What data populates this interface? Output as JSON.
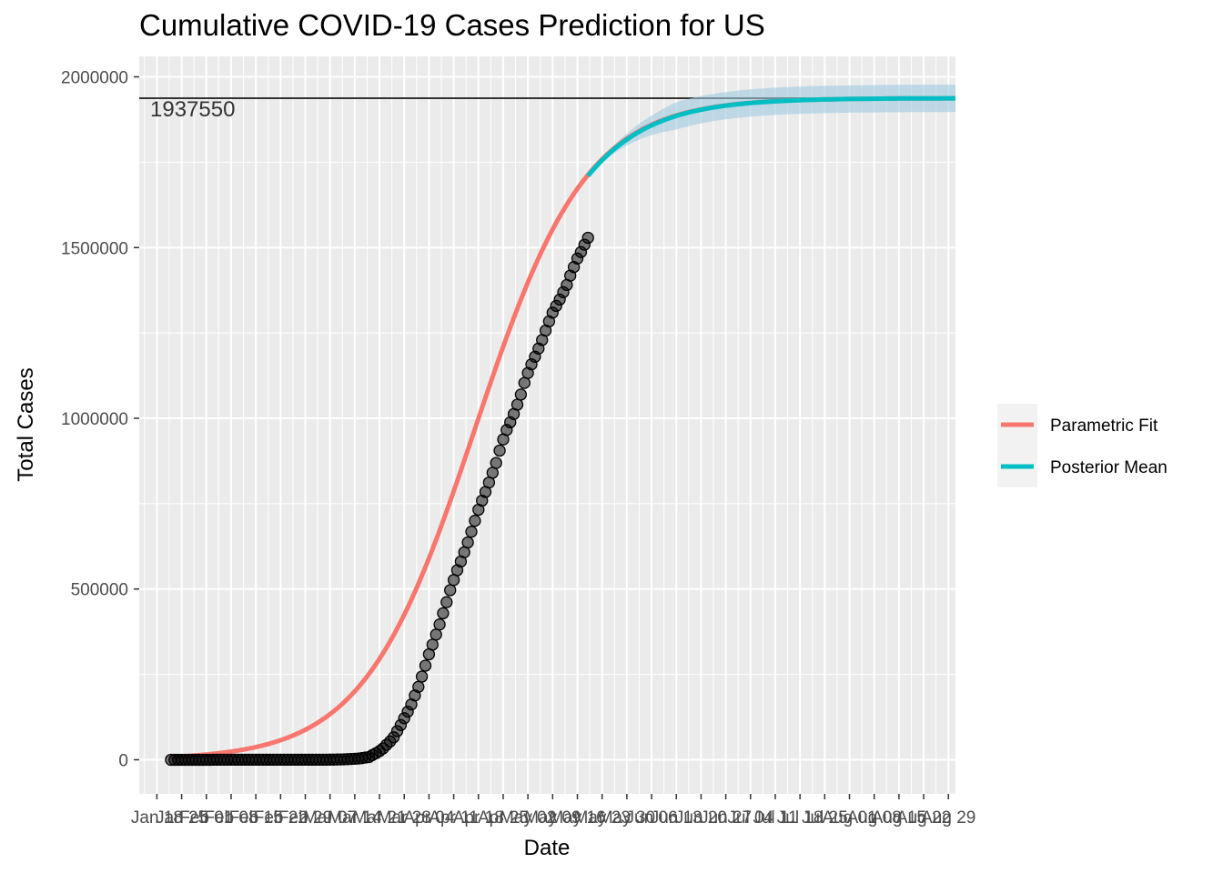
{
  "chart_data": {
    "type": "line",
    "title": "Cumulative COVID-19 Cases Prediction for US",
    "xlabel": "Date",
    "ylabel": "Total Cases",
    "x_range": [
      "2020-01-13",
      "2020-08-31"
    ],
    "ylim": [
      -100000,
      2060000
    ],
    "y_ticks": [
      0,
      500000,
      1000000,
      1500000,
      2000000
    ],
    "y_tick_labels": [
      "0",
      "500000",
      "1000000",
      "1500000",
      "2000000"
    ],
    "x_ticks": [
      "2020-01-18",
      "2020-01-25",
      "2020-02-01",
      "2020-02-08",
      "2020-02-15",
      "2020-02-22",
      "2020-02-29",
      "2020-03-07",
      "2020-03-14",
      "2020-03-21",
      "2020-03-28",
      "2020-04-04",
      "2020-04-11",
      "2020-04-18",
      "2020-04-25",
      "2020-05-02",
      "2020-05-09",
      "2020-05-16",
      "2020-05-23",
      "2020-05-30",
      "2020-06-06",
      "2020-06-13",
      "2020-06-20",
      "2020-06-27",
      "2020-07-04",
      "2020-07-11",
      "2020-07-18",
      "2020-07-25",
      "2020-08-01",
      "2020-08-08",
      "2020-08-15",
      "2020-08-22",
      "2020-08-29"
    ],
    "x_tick_labels": [
      "Jan 18",
      "Jan 25",
      "Feb 01",
      "Feb 08",
      "Feb 15",
      "Feb 22",
      "Feb 29",
      "Mar 07",
      "Mar 14",
      "Mar 21",
      "Mar 28",
      "Apr 04",
      "Apr 11",
      "Apr 18",
      "Apr 25",
      "May 02",
      "May 09",
      "May 16",
      "May 23",
      "May 30",
      "Jun 06",
      "Jun 13",
      "Jun 20",
      "Jun 27",
      "Jul 04",
      "Jul 11",
      "Jul 18",
      "Jul 25",
      "Aug 01",
      "Aug 08",
      "Aug 15",
      "Aug 22",
      "Aug 29"
    ],
    "hline": {
      "value": 1937550,
      "label": "1937550"
    },
    "observed": {
      "start": "2020-01-22",
      "values": [
        1,
        1,
        2,
        2,
        5,
        5,
        5,
        5,
        5,
        7,
        8,
        8,
        11,
        11,
        11,
        11,
        11,
        11,
        11,
        11,
        12,
        12,
        13,
        13,
        13,
        13,
        13,
        13,
        13,
        13,
        15,
        15,
        15,
        51,
        51,
        57,
        58,
        60,
        68,
        74,
        98,
        118,
        149,
        217,
        262,
        402,
        518,
        583,
        959,
        1281,
        1663,
        2179,
        2727,
        3499,
        4632,
        6421,
        7786,
        13680,
        19101,
        25493,
        33276,
        43847,
        53740,
        65778,
        83836,
        101657,
        121478,
        140886,
        161807,
        188172,
        213372,
        243453,
        275586,
        308850,
        337072,
        366667,
        396223,
        429052,
        461437,
        496535,
        526396,
        555313,
        580619,
        607670,
        636350,
        667801,
        699706,
        732197,
        758809,
        784326,
        811865,
        840351,
        869170,
        905358,
        938154,
        965785,
        988197,
        1012583,
        1039909,
        1069424,
        1103461,
        1132539,
        1158040,
        1180375,
        1204351,
        1229331,
        1257023,
        1283929,
        1309550,
        1329260,
        1347881,
        1369376,
        1390406,
        1417774,
        1442824,
        1467820,
        1486757,
        1508308,
        1528568
      ]
    },
    "series": [
      {
        "name": "Parametric Fit",
        "color": "#F8766D",
        "start": "2020-01-22",
        "end": "2020-08-31",
        "model": {
          "K": 1937550,
          "midpoint": "2020-04-17",
          "rate": 0.0635
        }
      },
      {
        "name": "Posterior Mean",
        "color": "#00BFC4",
        "start": "2020-05-19",
        "end": "2020-08-31",
        "model": {
          "K": 1937550,
          "midpoint": "2020-04-17",
          "rate": 0.063
        },
        "band_color": "#9ecae1"
      }
    ],
    "legend": {
      "position": "right",
      "entries": [
        "Parametric Fit",
        "Posterior Mean"
      ]
    },
    "grid": true,
    "panel_background": "#EBEBEB"
  }
}
